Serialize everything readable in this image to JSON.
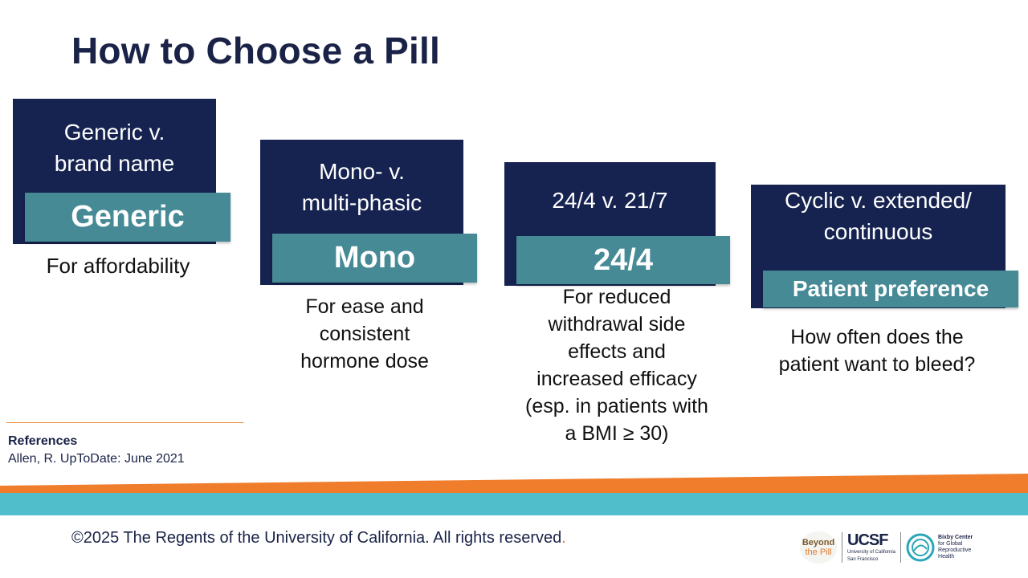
{
  "slide": {
    "title": "How to Choose a Pill"
  },
  "cards": [
    {
      "head_line1": "Generic v.",
      "head_line2": "brand name",
      "badge": "Generic",
      "desc": [
        "For affordability"
      ]
    },
    {
      "head_line1": "Mono- v.",
      "head_line2": "multi-phasic",
      "badge": "Mono",
      "desc": [
        "For ease and",
        "consistent",
        "hormone dose"
      ]
    },
    {
      "head_line1": "24/4 v. 21/7",
      "head_line2": "",
      "badge": "24/4",
      "desc": [
        "For reduced",
        "withdrawal side",
        "effects and",
        "increased efficacy",
        "(esp. in patients with",
        "a BMI ≥ 30)"
      ]
    },
    {
      "head_line1": "Cyclic v. extended/",
      "head_line2": "continuous",
      "badge": "Patient preference",
      "desc": [
        "How often does the",
        "patient want to bleed?"
      ]
    }
  ],
  "references": {
    "heading": "References",
    "text": "Allen, R. UpToDate: June 2021"
  },
  "footer": {
    "copyright": "©2025 The Regents of the University of California. All rights reserved",
    "copyright_end": ".",
    "logo_beyond_line1": "Beyond",
    "logo_beyond_line2": "the Pill",
    "logo_ucsf": "UCSF",
    "logo_ucsf_sub1": "University of California",
    "logo_ucsf_sub2": "San Francisco",
    "logo_bixby_line1": "Bixby Center",
    "logo_bixby_line2": "for Global",
    "logo_bixby_line3": "Reproductive",
    "logo_bixby_line4": "Health"
  },
  "colors": {
    "navy": "#162350",
    "teal_badge": "#468a96",
    "orange_band": "#f07d2b",
    "teal_band": "#50bfcb"
  }
}
